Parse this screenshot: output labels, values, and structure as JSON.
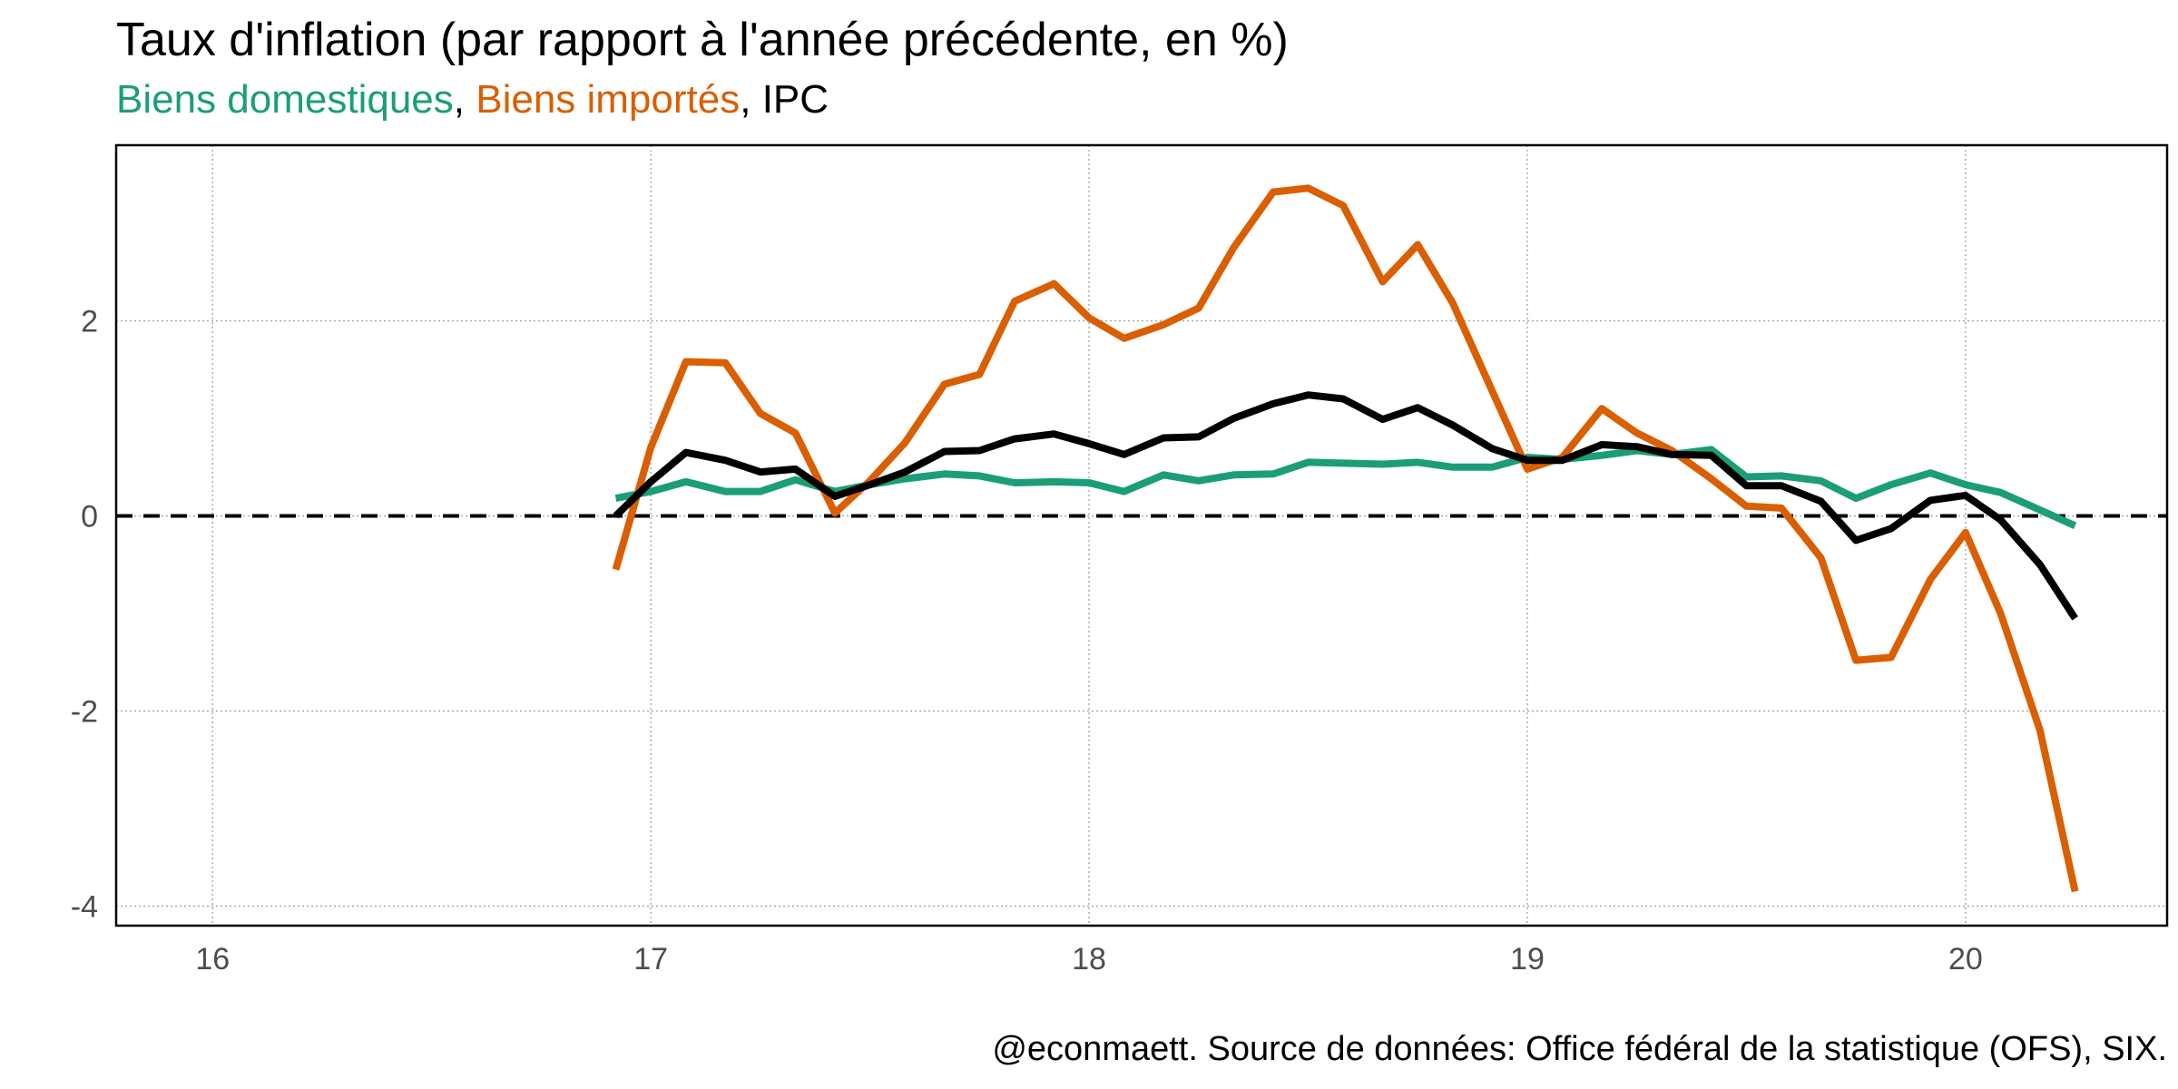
{
  "title": "Taux d'inflation (par rapport à l'année précédente, en %)",
  "subtitle": {
    "domestic": "Biens domestiques",
    "sep1": ", ",
    "imported": "Biens importés",
    "sep2": ", ",
    "cpi": "IPC"
  },
  "caption": "@econmaett. Source de données: Office fédéral de la statistique (OFS), SIX.",
  "colors": {
    "domestic": "#1b9e77",
    "imported": "#d95f02",
    "cpi": "#000000"
  },
  "chart_data": {
    "type": "line",
    "title": "Taux d'inflation (par rapport à l'année précédente, en %)",
    "xlabel": "",
    "ylabel": "",
    "xlim": [
      15.78,
      20.46
    ],
    "ylim": [
      -4.2,
      3.8
    ],
    "x_ticks": [
      16,
      17,
      18,
      19,
      20
    ],
    "y_ticks": [
      -4,
      -2,
      0,
      2
    ],
    "grid": true,
    "reference_line": 0,
    "legend": "subtitle",
    "x": [
      16.92,
      17.0,
      17.08,
      17.17,
      17.25,
      17.33,
      17.42,
      17.5,
      17.58,
      17.67,
      17.75,
      17.83,
      17.92,
      18.0,
      18.08,
      18.17,
      18.25,
      18.33,
      18.42,
      18.5,
      18.58,
      18.67,
      18.75,
      18.83,
      18.92,
      19.0,
      19.08,
      19.17,
      19.25,
      19.33,
      19.42,
      19.5,
      19.58,
      19.67,
      19.75,
      19.83,
      19.92,
      20.0,
      20.08,
      20.17,
      20.25
    ],
    "series": [
      {
        "name": "Biens domestiques",
        "values": [
          0.18,
          0.25,
          0.35,
          0.25,
          0.25,
          0.37,
          0.25,
          0.32,
          0.38,
          0.43,
          0.41,
          0.34,
          0.35,
          0.34,
          0.25,
          0.42,
          0.36,
          0.42,
          0.43,
          0.55,
          0.54,
          0.53,
          0.55,
          0.5,
          0.5,
          0.6,
          0.58,
          0.62,
          0.67,
          0.63,
          0.68,
          0.4,
          0.41,
          0.36,
          0.18,
          0.32,
          0.44,
          0.32,
          0.24,
          0.06,
          -0.1
        ]
      },
      {
        "name": "Biens importés",
        "values": [
          -0.55,
          0.7,
          1.58,
          1.57,
          1.05,
          0.85,
          0.03,
          0.36,
          0.75,
          1.35,
          1.45,
          2.2,
          2.38,
          2.03,
          1.82,
          1.96,
          2.13,
          2.75,
          3.32,
          3.36,
          3.18,
          2.4,
          2.78,
          2.18,
          1.28,
          0.48,
          0.6,
          1.1,
          0.85,
          0.67,
          0.38,
          0.1,
          0.08,
          -0.43,
          -1.48,
          -1.45,
          -0.65,
          -0.17,
          -1.0,
          -2.2,
          -3.85
        ]
      },
      {
        "name": "IPC",
        "values": [
          0.0,
          0.35,
          0.65,
          0.57,
          0.45,
          0.48,
          0.2,
          0.32,
          0.45,
          0.66,
          0.67,
          0.79,
          0.84,
          0.74,
          0.63,
          0.8,
          0.81,
          1.0,
          1.15,
          1.24,
          1.2,
          0.99,
          1.11,
          0.93,
          0.69,
          0.57,
          0.57,
          0.73,
          0.71,
          0.63,
          0.62,
          0.31,
          0.31,
          0.15,
          -0.25,
          -0.13,
          0.16,
          0.21,
          -0.04,
          -0.5,
          -1.05
        ]
      }
    ]
  }
}
